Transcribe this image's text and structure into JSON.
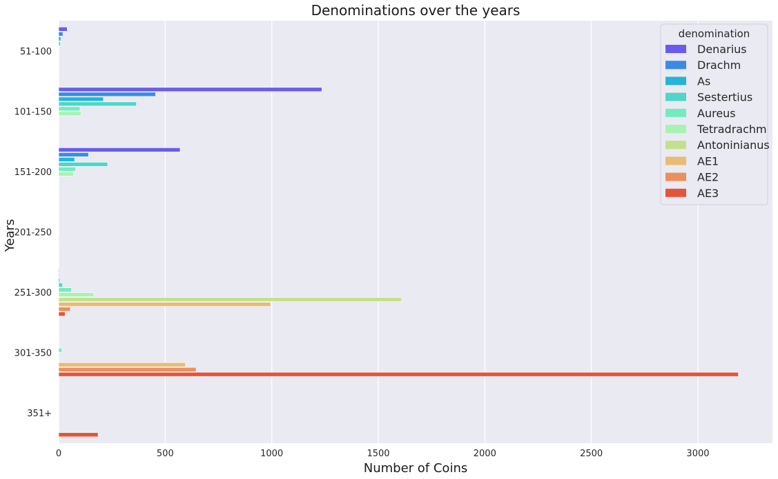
{
  "chart_data": {
    "type": "bar",
    "orientation": "horizontal",
    "title": "Denominations over the years",
    "xlabel": "Number of Coins",
    "ylabel": "Years",
    "xlim": [
      0,
      3350
    ],
    "xticks": [
      0,
      500,
      1000,
      1500,
      2000,
      2500,
      3000
    ],
    "grid": true,
    "legend_placement": "top-right",
    "legend_title": "denomination",
    "categories": [
      "51-100",
      "101-150",
      "151-200",
      "201-250",
      "251-300",
      "301-350",
      "351+"
    ],
    "series": [
      {
        "name": "Denarius",
        "color": "#6a5bf0",
        "values": [
          40,
          1235,
          570,
          0,
          3,
          0,
          0
        ]
      },
      {
        "name": "Drachm",
        "color": "#3b8be6",
        "values": [
          20,
          455,
          140,
          0,
          3,
          0,
          0
        ]
      },
      {
        "name": "As",
        "color": "#24b4d8",
        "values": [
          10,
          210,
          75,
          0,
          5,
          0,
          0
        ]
      },
      {
        "name": "Sestertius",
        "color": "#4fd6c8",
        "values": [
          8,
          365,
          230,
          0,
          18,
          0,
          0
        ]
      },
      {
        "name": "Aureus",
        "color": "#74eac0",
        "values": [
          0,
          100,
          80,
          0,
          60,
          15,
          0
        ]
      },
      {
        "name": "Tetradrachm",
        "color": "#a8f3b4",
        "values": [
          3,
          105,
          70,
          0,
          165,
          4,
          0
        ]
      },
      {
        "name": "Antoninianus",
        "color": "#c5e08d",
        "values": [
          0,
          0,
          0,
          4,
          1610,
          0,
          0
        ]
      },
      {
        "name": "AE1",
        "color": "#e8bc74",
        "values": [
          0,
          0,
          0,
          0,
          995,
          595,
          0
        ]
      },
      {
        "name": "AE2",
        "color": "#ec8f5e",
        "values": [
          0,
          0,
          0,
          0,
          55,
          645,
          0
        ]
      },
      {
        "name": "AE3",
        "color": "#e4543b",
        "values": [
          0,
          0,
          0,
          0,
          30,
          3190,
          185
        ]
      }
    ]
  }
}
